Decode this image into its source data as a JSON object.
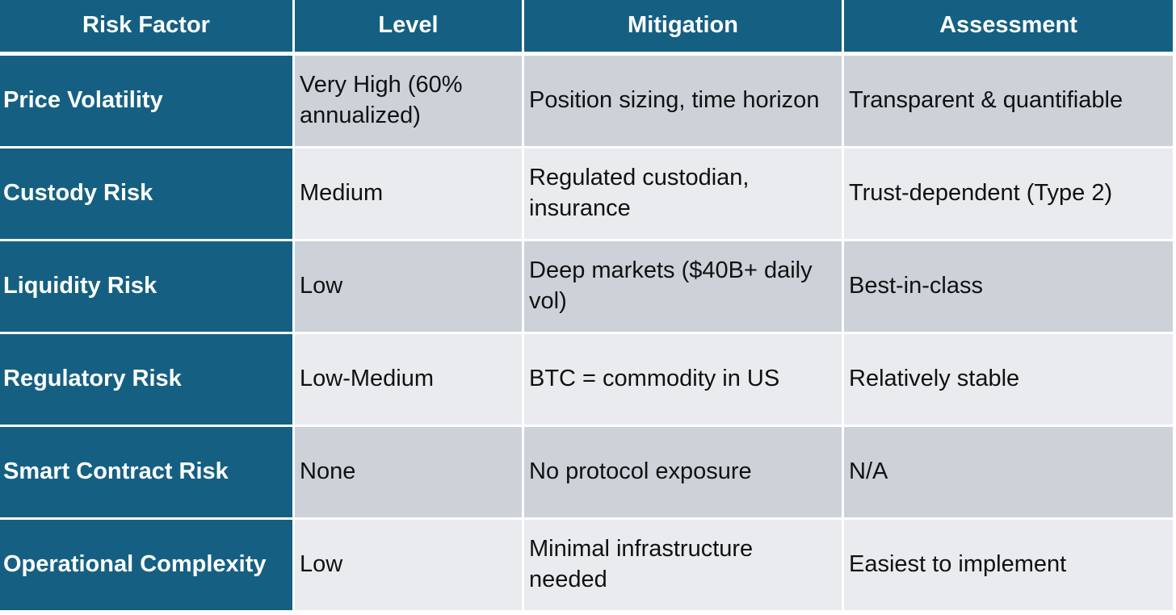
{
  "chart_data": {
    "type": "table",
    "columns": [
      "Risk Factor",
      "Level",
      "Mitigation",
      "Assessment"
    ],
    "rows": [
      [
        "Price Volatility",
        "Very High (60% annualized)",
        "Position sizing, time horizon",
        "Transparent & quantifiable"
      ],
      [
        "Custody Risk",
        "Medium",
        "Regulated custodian, insurance",
        "Trust-dependent (Type 2)"
      ],
      [
        "Liquidity Risk",
        "Low",
        "Deep markets ($40B+ daily vol)",
        "Best-in-class"
      ],
      [
        "Regulatory Risk",
        "Low-Medium",
        "BTC = commodity in US",
        "Relatively stable"
      ],
      [
        "Smart Contract Risk",
        "None",
        "No protocol exposure",
        "N/A"
      ],
      [
        "Operational Complexity",
        "Low",
        "Minimal infrastructure needed",
        "Easiest to implement"
      ]
    ],
    "layout": {
      "header_row": true,
      "banded_rows": true,
      "first_column_emphasis": true
    }
  },
  "colors": {
    "header_bg": "#156082",
    "header_text": "#FFFFFF",
    "band_dark": "#CDD2D9",
    "band_light": "#E9EBEE",
    "body_text": "#111111",
    "grid_line": "#FFFFFF"
  }
}
